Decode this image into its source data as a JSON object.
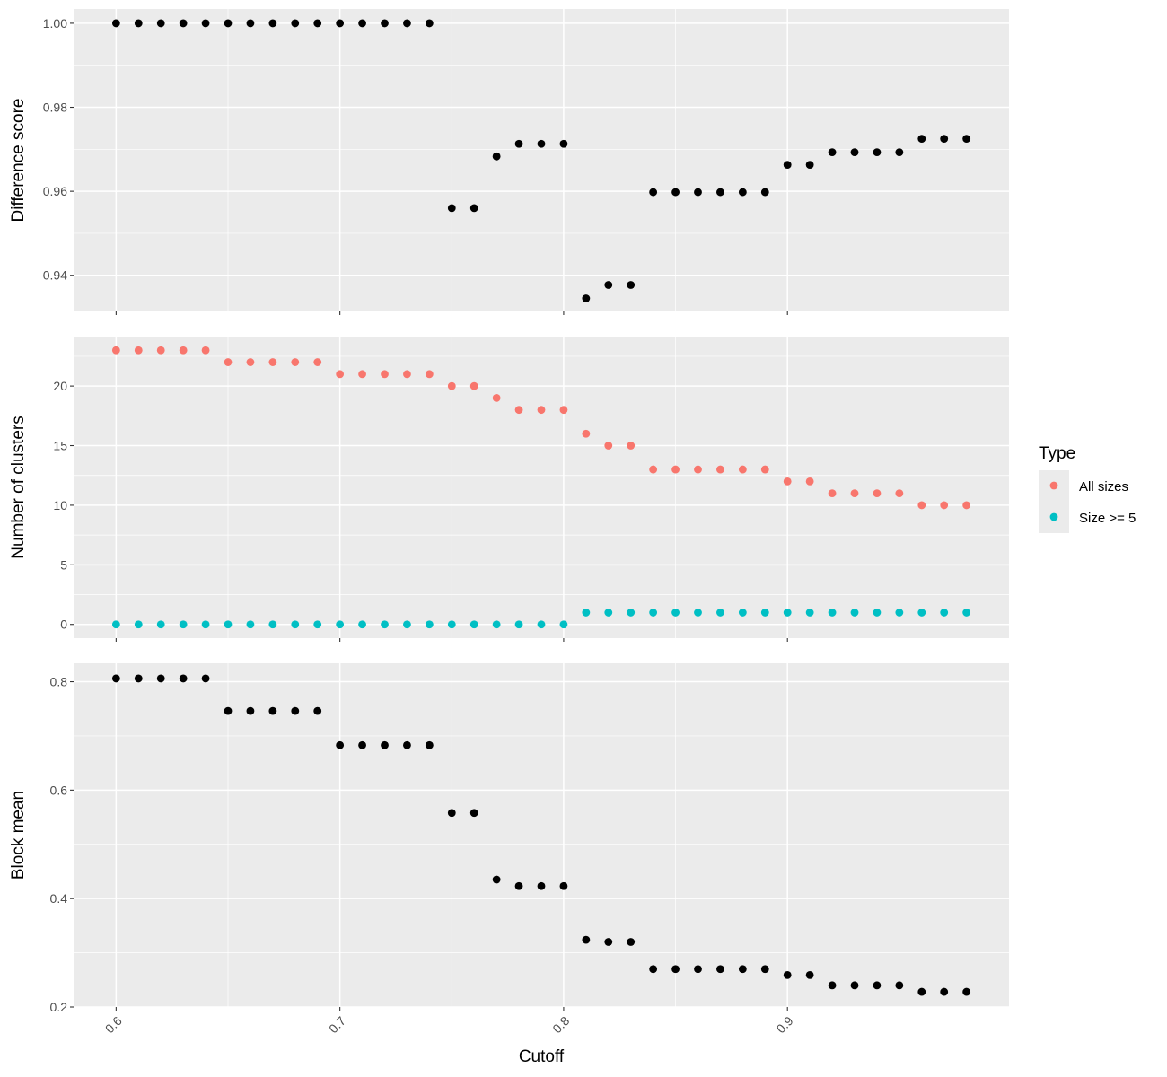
{
  "chart_data": {
    "type": "scatter",
    "xlabel": "Cutoff",
    "xlim": [
      0.581,
      0.999
    ],
    "x_ticks": [
      "0.6",
      "0.7",
      "0.8",
      "0.9"
    ],
    "x": [
      0.6,
      0.61,
      0.62,
      0.63,
      0.64,
      0.65,
      0.66,
      0.67,
      0.68,
      0.69,
      0.7,
      0.71,
      0.72,
      0.73,
      0.74,
      0.75,
      0.76,
      0.77,
      0.78,
      0.79,
      0.8,
      0.81,
      0.82,
      0.83,
      0.84,
      0.85,
      0.86,
      0.87,
      0.88,
      0.89,
      0.9,
      0.91,
      0.92,
      0.93,
      0.94,
      0.95,
      0.96,
      0.97,
      0.98
    ],
    "grid": true,
    "panels": [
      {
        "ylabel": "Difference score",
        "ylim": [
          0.9314,
          1.0034
        ],
        "y_ticks": [
          "0.94",
          "0.96",
          "0.98",
          "1.00"
        ],
        "series": [
          {
            "name": "",
            "color": "#000000",
            "values": [
              1.0,
              1.0,
              1.0,
              1.0,
              1.0,
              1.0,
              1.0,
              1.0,
              1.0,
              1.0,
              1.0,
              1.0,
              1.0,
              1.0,
              1.0,
              0.956,
              0.956,
              0.9683,
              0.9713,
              0.9713,
              0.9713,
              0.9345,
              0.9377,
              0.9377,
              0.9598,
              0.9598,
              0.9598,
              0.9598,
              0.9598,
              0.9598,
              0.9663,
              0.9663,
              0.9693,
              0.9693,
              0.9693,
              0.9693,
              0.9725,
              0.9725,
              0.9725
            ]
          }
        ]
      },
      {
        "ylabel": "Number of clusters",
        "ylim": [
          -1.15,
          24.15
        ],
        "y_ticks": [
          "0",
          "5",
          "10",
          "15",
          "20"
        ],
        "series": [
          {
            "name": "All sizes",
            "color": "#F8766D",
            "values": [
              23,
              23,
              23,
              23,
              23,
              22,
              22,
              22,
              22,
              22,
              21,
              21,
              21,
              21,
              21,
              20,
              20,
              19,
              18,
              18,
              18,
              16,
              15,
              15,
              13,
              13,
              13,
              13,
              13,
              13,
              12,
              12,
              11,
              11,
              11,
              11,
              10,
              10,
              10
            ]
          },
          {
            "name": "Size >= 5",
            "color": "#00BFC4",
            "values": [
              0,
              0,
              0,
              0,
              0,
              0,
              0,
              0,
              0,
              0,
              0,
              0,
              0,
              0,
              0,
              0,
              0,
              0,
              0,
              0,
              0,
              1,
              1,
              1,
              1,
              1,
              1,
              1,
              1,
              1,
              1,
              1,
              1,
              1,
              1,
              1,
              1,
              1,
              1
            ]
          }
        ]
      },
      {
        "ylabel": "Block mean",
        "ylim": [
          0.2,
          0.834
        ],
        "y_ticks": [
          "0.2",
          "0.4",
          "0.6",
          "0.8"
        ],
        "series": [
          {
            "name": "",
            "color": "#000000",
            "values": [
              0.806,
              0.806,
              0.806,
              0.806,
              0.806,
              0.746,
              0.746,
              0.746,
              0.746,
              0.746,
              0.683,
              0.683,
              0.683,
              0.683,
              0.683,
              0.558,
              0.558,
              0.435,
              0.423,
              0.423,
              0.423,
              0.324,
              0.32,
              0.32,
              0.27,
              0.27,
              0.27,
              0.27,
              0.27,
              0.27,
              0.259,
              0.259,
              0.24,
              0.24,
              0.24,
              0.24,
              0.228,
              0.228,
              0.228
            ]
          }
        ]
      }
    ],
    "legend": {
      "title": "Type",
      "position": "right",
      "items": [
        {
          "label": "All sizes",
          "color": "#F8766D"
        },
        {
          "label": "Size >= 5",
          "color": "#00BFC4"
        }
      ]
    }
  }
}
